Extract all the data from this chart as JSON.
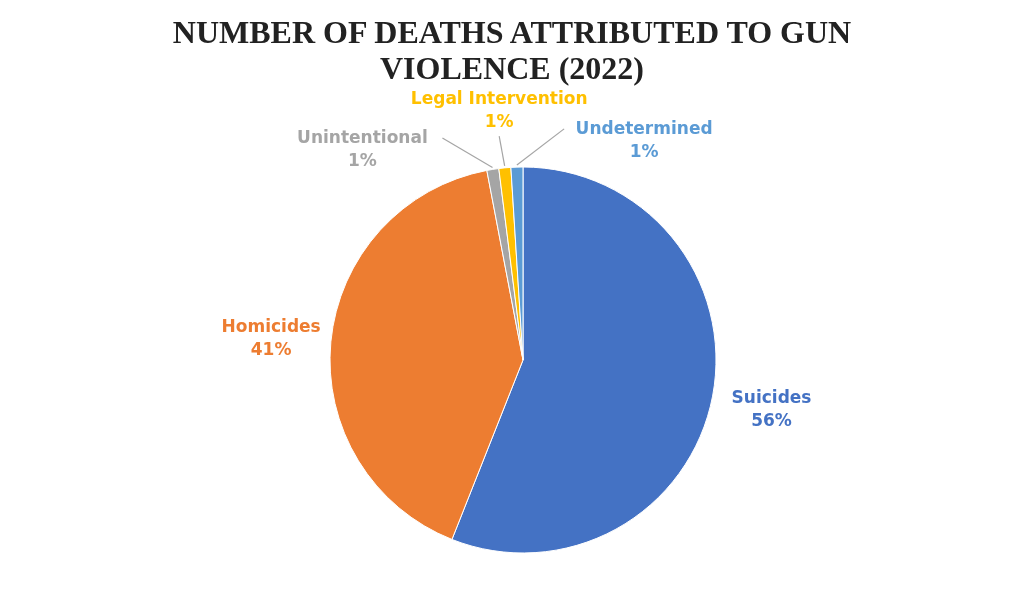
{
  "chart_data": {
    "type": "pie",
    "title": "NUMBER OF DEATHS ATTRIBUTED TO GUN VIOLENCE (2022)",
    "categories": [
      "Suicides",
      "Homicides",
      "Unintentional",
      "Legal Intervention",
      "Undetermined"
    ],
    "values": [
      56,
      41,
      1,
      1,
      1
    ],
    "value_labels": [
      "56%",
      "41%",
      "1%",
      "1%",
      "1%"
    ],
    "colors": [
      "#4472c4",
      "#ed7d31",
      "#a5a5a5",
      "#ffc000",
      "#5b9bd5"
    ]
  }
}
